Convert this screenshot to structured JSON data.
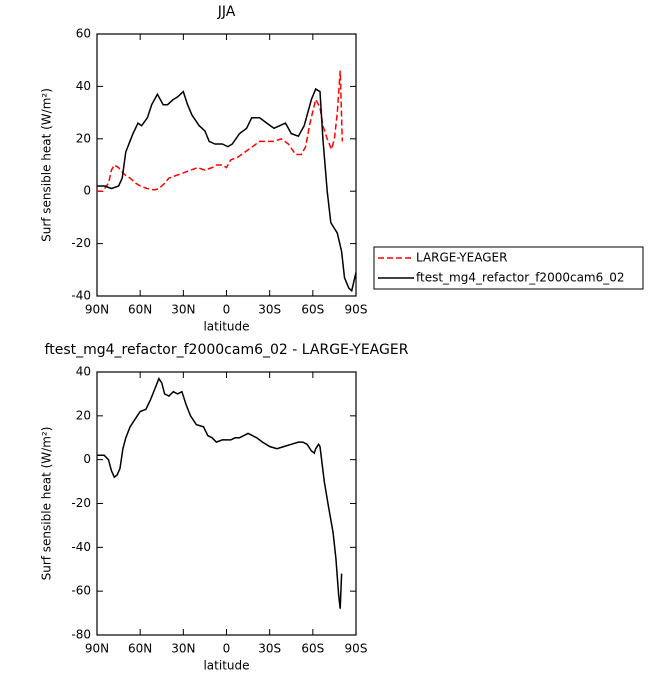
{
  "chart_data": [
    {
      "type": "line",
      "title": "JJA",
      "xlabel": "latitude",
      "ylabel": "Surf sensible heat (W/m²)",
      "xlim": [
        90,
        -90
      ],
      "xticks": [
        {
          "value": 90,
          "label": "90N"
        },
        {
          "value": 60,
          "label": "60N"
        },
        {
          "value": 30,
          "label": "30N"
        },
        0,
        {
          "value": -30,
          "label": "30S"
        },
        {
          "value": -60,
          "label": "60S"
        },
        {
          "value": -90,
          "label": "90S"
        }
      ],
      "ylim": [
        -40,
        60
      ],
      "yticks": [
        60,
        40,
        20,
        0,
        -20,
        -40
      ],
      "legend": "outside-right",
      "series": [
        {
          "name": "LARGE-YEAGER",
          "color": "#ff0000",
          "line_style": "dashed",
          "x": [
            90,
            86,
            82,
            80,
            78,
            75,
            72,
            70,
            67,
            63,
            60,
            55,
            50,
            47,
            43,
            40,
            35,
            30,
            25,
            20,
            15,
            10,
            7,
            3,
            0,
            -3,
            -8,
            -13,
            -18,
            -23,
            -28,
            -33,
            -38,
            -43,
            -48,
            -52,
            -55,
            -58,
            -62,
            -65,
            -67,
            -70,
            -73,
            -75,
            -77,
            -79,
            -80.5
          ],
          "values": [
            0,
            0,
            3,
            8,
            10,
            9,
            7,
            6,
            5,
            3,
            2,
            1,
            0.5,
            1,
            3,
            5,
            6,
            7,
            8,
            9,
            8,
            9,
            10,
            10,
            9,
            12,
            13,
            15,
            17,
            19,
            19,
            19,
            20,
            18,
            14,
            14,
            17,
            26,
            35,
            32,
            25,
            20,
            16,
            20,
            30,
            46,
            19
          ]
        },
        {
          "name": "ftest_mg4_refactor_f2000cam6_02",
          "color": "#000000",
          "line_style": "solid",
          "x": [
            90,
            84.5,
            80,
            75,
            72.5,
            70,
            65,
            61.5,
            59,
            55,
            52,
            48,
            44,
            41,
            37,
            34,
            30,
            27,
            24,
            19,
            15,
            12,
            8,
            3,
            -1,
            -4,
            -9,
            -14,
            -17.5,
            -23,
            -28,
            -33,
            -37,
            -41,
            -45,
            -50,
            -54,
            -59,
            -62,
            -65,
            -67,
            -70,
            -72.5,
            -77,
            -80,
            -82,
            -85,
            -87,
            -90
          ],
          "values": [
            2,
            2,
            1,
            2,
            5,
            15,
            22,
            26,
            25,
            28,
            33,
            37,
            33,
            33,
            35,
            36,
            38,
            33,
            29,
            25,
            23,
            19,
            18,
            18,
            17,
            18,
            22,
            24,
            28,
            28,
            26,
            24,
            25,
            26,
            22,
            21,
            25,
            35,
            39,
            38,
            20,
            0,
            -12,
            -16,
            -23,
            -33,
            -37,
            -38,
            -31
          ]
        }
      ]
    },
    {
      "type": "line",
      "title": "ftest_mg4_refactor_f2000cam6_02 - LARGE-YEAGER",
      "xlabel": "latitude",
      "ylabel": "Surf sensible heat (W/m²)",
      "xlim": [
        90,
        -90
      ],
      "xticks": [
        {
          "value": 90,
          "label": "90N"
        },
        {
          "value": 60,
          "label": "60N"
        },
        {
          "value": 30,
          "label": "30N"
        },
        0,
        {
          "value": -30,
          "label": "30S"
        },
        {
          "value": -60,
          "label": "60S"
        },
        {
          "value": -90,
          "label": "90S"
        }
      ],
      "ylim": [
        -80,
        40
      ],
      "yticks": [
        40,
        20,
        0,
        -20,
        -40,
        -60,
        -80
      ],
      "series": [
        {
          "color": "#000000",
          "line_style": "solid",
          "x": [
            90,
            85,
            82,
            80,
            78,
            76,
            74,
            72,
            70,
            67,
            64,
            60,
            56,
            53,
            50,
            47,
            45,
            43,
            40,
            37,
            34,
            31,
            28,
            25,
            21,
            16,
            13,
            10,
            7,
            3,
            0,
            -3,
            -6,
            -9,
            -12,
            -15,
            -18,
            -21,
            -25,
            -30,
            -35,
            -40,
            -45,
            -50,
            -53,
            -56,
            -59,
            -61,
            -62,
            -64,
            -65,
            -68,
            -71,
            -74,
            -76,
            -78,
            -79,
            -80
          ],
          "values": [
            2,
            2,
            0,
            -5,
            -8,
            -7,
            -4,
            5,
            10,
            15,
            18,
            22,
            23,
            27,
            32,
            37,
            35,
            30,
            29,
            31,
            30,
            31,
            25,
            20,
            16,
            15,
            11,
            10,
            8,
            9,
            9,
            9,
            10,
            10,
            11,
            12,
            11,
            10,
            8,
            6,
            5,
            6,
            7,
            8,
            8,
            7,
            4,
            3,
            5,
            7,
            6,
            -10,
            -22,
            -33,
            -45,
            -62,
            -68,
            -52
          ]
        }
      ]
    }
  ]
}
